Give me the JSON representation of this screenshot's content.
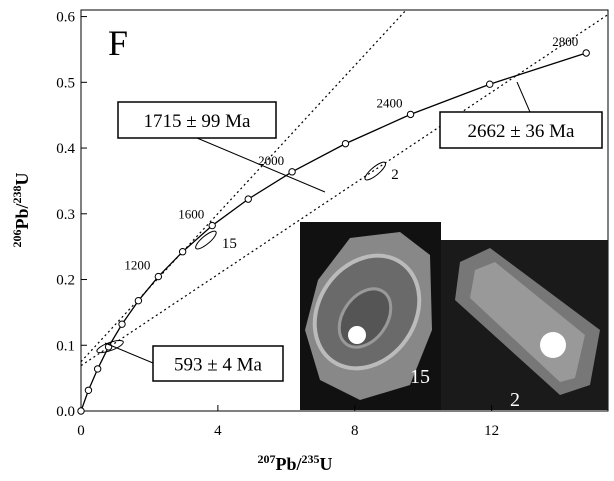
{
  "chart_data": {
    "type": "concordia",
    "panel_label": "F",
    "xlabel": {
      "sup1": "207",
      "t1": "Pb/",
      "sup2": "235",
      "t2": "U"
    },
    "ylabel": {
      "sup1": "206",
      "t1": "Pb/",
      "sup2": "238",
      "t2": "U"
    },
    "xlim": [
      0,
      15.4
    ],
    "ylim": [
      0,
      0.61
    ],
    "xticks": [
      0,
      4,
      8,
      12
    ],
    "yticks": [
      {
        "value": 0,
        "label": "0.0"
      },
      0.1,
      0.2,
      0.3,
      0.4,
      0.5,
      0.6
    ],
    "series": [
      {
        "name": "Concordia",
        "color": "#000000",
        "x": [
          0,
          0.2177,
          0.487,
          0.8056,
          1.1986,
          1.6774,
          2.2603,
          2.9701,
          3.834,
          4.887,
          6.168,
          7.729,
          9.63,
          11.944,
          14.763
        ],
        "y": [
          0,
          0.0315,
          0.064,
          0.0976,
          0.1321,
          0.1678,
          0.2045,
          0.2423,
          0.2821,
          0.3223,
          0.3638,
          0.4067,
          0.4512,
          0.4971,
          0.5446
        ],
        "point_labels": [
          null,
          null,
          null,
          null,
          null,
          null,
          1200,
          null,
          1600,
          null,
          2000,
          null,
          2400,
          null,
          2800
        ]
      }
    ],
    "discordia": [
      {
        "x": [
          0,
          9.5
        ],
        "y": [
          0.075,
          0.61
        ]
      },
      {
        "x": [
          0,
          15.4
        ],
        "y": [
          0.069,
          0.603
        ]
      }
    ],
    "ellipses": [
      {
        "x": 3.65,
        "y": 0.26,
        "label": "15"
      },
      {
        "x": 8.6,
        "y": 0.365,
        "label": "2"
      },
      {
        "x": 0.85,
        "y": 0.098,
        "label": null
      }
    ],
    "annotations": [
      "1715 ± 99 Ma",
      "2662 ± 36 Ma",
      "593 ± 4 Ma"
    ],
    "inset_labels": [
      "15",
      "2"
    ]
  }
}
